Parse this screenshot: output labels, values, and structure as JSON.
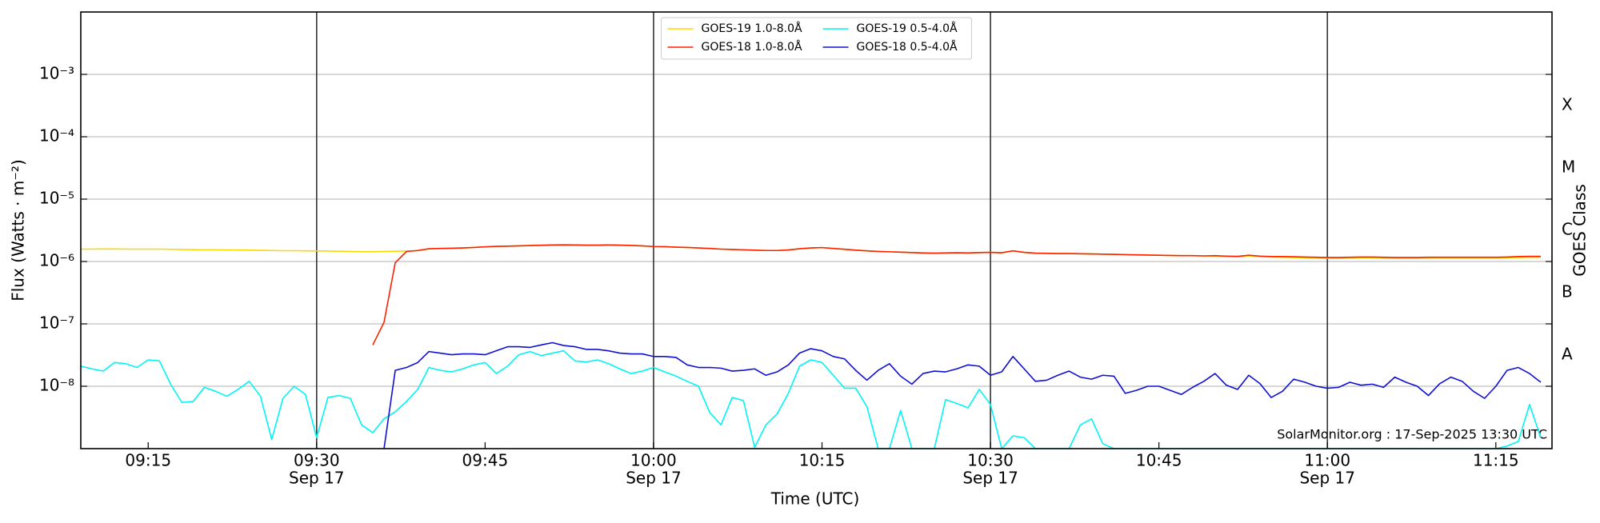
{
  "chart_data": {
    "type": "line",
    "xlabel": "Time (UTC)",
    "ylabel": "Flux (Watts · m⁻²)",
    "y2label": "GOES Class",
    "annotation": "SolarMonitor.org : 17-Sep-2025 13:30 UTC",
    "log_y": true,
    "grid": true,
    "legend": {
      "loc": "upper center",
      "ncol": 2
    },
    "xlim": [
      "09:09",
      "11:20"
    ],
    "ylim": [
      1e-09,
      0.01
    ],
    "xticks": [
      "09:15",
      "09:30",
      "09:45",
      "10:00",
      "10:15",
      "10:30",
      "10:45",
      "11:00",
      "11:15"
    ],
    "xtick_sublabels": [
      null,
      "Sep 17",
      null,
      "Sep 17",
      null,
      "Sep 17",
      null,
      "Sep 17",
      null
    ],
    "vlines": [
      "09:30",
      "10:00",
      "10:30",
      "11:00"
    ],
    "yticks": [
      {
        "value": 0.001,
        "label": "10⁻³"
      },
      {
        "value": 0.0001,
        "label": "10⁻⁴"
      },
      {
        "value": 1e-05,
        "label": "10⁻⁵"
      },
      {
        "value": 1e-06,
        "label": "10⁻⁶"
      },
      {
        "value": 1e-07,
        "label": "10⁻⁷"
      },
      {
        "value": 1e-08,
        "label": "10⁻⁸"
      }
    ],
    "class_labels": [
      {
        "value": 3.16e-08,
        "label": "A"
      },
      {
        "value": 3.16e-07,
        "label": "B"
      },
      {
        "value": 3.16e-06,
        "label": "C"
      },
      {
        "value": 3.16e-05,
        "label": "M"
      },
      {
        "value": 0.000316,
        "label": "X"
      }
    ],
    "x": [
      "09:09",
      "09:10",
      "09:11",
      "09:12",
      "09:13",
      "09:14",
      "09:15",
      "09:16",
      "09:17",
      "09:18",
      "09:19",
      "09:20",
      "09:21",
      "09:22",
      "09:23",
      "09:24",
      "09:25",
      "09:26",
      "09:27",
      "09:28",
      "09:29",
      "09:30",
      "09:31",
      "09:32",
      "09:33",
      "09:34",
      "09:35",
      "09:36",
      "09:37",
      "09:38",
      "09:39",
      "09:40",
      "09:41",
      "09:42",
      "09:43",
      "09:44",
      "09:45",
      "09:46",
      "09:47",
      "09:48",
      "09:49",
      "09:50",
      "09:51",
      "09:52",
      "09:53",
      "09:54",
      "09:55",
      "09:56",
      "09:57",
      "09:58",
      "09:59",
      "10:00",
      "10:01",
      "10:02",
      "10:03",
      "10:04",
      "10:05",
      "10:06",
      "10:07",
      "10:08",
      "10:09",
      "10:10",
      "10:11",
      "10:12",
      "10:13",
      "10:14",
      "10:15",
      "10:16",
      "10:17",
      "10:18",
      "10:19",
      "10:20",
      "10:21",
      "10:22",
      "10:23",
      "10:24",
      "10:25",
      "10:26",
      "10:27",
      "10:28",
      "10:29",
      "10:30",
      "10:31",
      "10:32",
      "10:33",
      "10:34",
      "10:35",
      "10:36",
      "10:37",
      "10:38",
      "10:39",
      "10:40",
      "10:41",
      "10:42",
      "10:43",
      "10:44",
      "10:45",
      "10:46",
      "10:47",
      "10:48",
      "10:49",
      "10:50",
      "10:51",
      "10:52",
      "10:53",
      "10:54",
      "10:55",
      "10:56",
      "10:57",
      "10:58",
      "10:59",
      "11:00",
      "11:01",
      "11:02",
      "11:03",
      "11:04",
      "11:05",
      "11:06",
      "11:07",
      "11:08",
      "11:09",
      "11:10",
      "11:11",
      "11:12",
      "11:13",
      "11:14",
      "11:15",
      "11:16",
      "11:17",
      "11:18",
      "11:19"
    ],
    "series": [
      {
        "name": "GOES-19 1.0-8.0Å",
        "color": "#ffd700",
        "values": [
          1.58e-06,
          1.58e-06,
          1.59e-06,
          1.59e-06,
          1.58e-06,
          1.58e-06,
          1.58e-06,
          1.58e-06,
          1.57e-06,
          1.56e-06,
          1.55e-06,
          1.54e-06,
          1.54e-06,
          1.53e-06,
          1.53e-06,
          1.52e-06,
          1.51e-06,
          1.5e-06,
          1.49e-06,
          1.49e-06,
          1.48e-06,
          1.48e-06,
          1.47e-06,
          1.46e-06,
          1.45e-06,
          1.44e-06,
          1.44e-06,
          1.45e-06,
          1.46e-06,
          1.47e-06,
          1.49e-06,
          1.6e-06,
          1.62e-06,
          1.63e-06,
          1.65e-06,
          1.68e-06,
          1.72e-06,
          1.75e-06,
          1.76e-06,
          1.78e-06,
          1.8e-06,
          1.82e-06,
          1.84e-06,
          1.85e-06,
          1.84e-06,
          1.83e-06,
          1.83e-06,
          1.84e-06,
          1.83e-06,
          1.81e-06,
          1.78e-06,
          1.74e-06,
          1.73e-06,
          1.7e-06,
          1.68e-06,
          1.65e-06,
          1.62e-06,
          1.58e-06,
          1.56e-06,
          1.54e-06,
          1.52e-06,
          1.5e-06,
          1.5e-06,
          1.53e-06,
          1.6e-06,
          1.65e-06,
          1.67e-06,
          1.62e-06,
          1.57e-06,
          1.52e-06,
          1.48e-06,
          1.45e-06,
          1.43e-06,
          1.41e-06,
          1.39e-06,
          1.37e-06,
          1.36e-06,
          1.37e-06,
          1.38e-06,
          1.37e-06,
          1.39e-06,
          1.4e-06,
          1.38e-06,
          1.48e-06,
          1.4e-06,
          1.36e-06,
          1.35e-06,
          1.34e-06,
          1.34e-06,
          1.33e-06,
          1.32e-06,
          1.31e-06,
          1.3e-06,
          1.29e-06,
          1.28e-06,
          1.27e-06,
          1.26e-06,
          1.25e-06,
          1.24e-06,
          1.24e-06,
          1.23e-06,
          1.22e-06,
          1.2e-06,
          1.19e-06,
          1.23e-06,
          1.2e-06,
          1.18e-06,
          1.17e-06,
          1.16e-06,
          1.15e-06,
          1.14e-06,
          1.13e-06,
          1.13e-06,
          1.14e-06,
          1.15e-06,
          1.15e-06,
          1.14e-06,
          1.13e-06,
          1.13e-06,
          1.13e-06,
          1.14e-06,
          1.14e-06,
          1.14e-06,
          1.14e-06,
          1.14e-06,
          1.14e-06,
          1.14e-06,
          1.15e-06,
          1.16e-06,
          1.17e-06,
          1.17e-06
        ]
      },
      {
        "name": "GOES-18 1.0-8.0Å",
        "color": "#ff2000",
        "values": [
          null,
          null,
          null,
          null,
          null,
          null,
          null,
          null,
          null,
          null,
          null,
          null,
          null,
          null,
          null,
          null,
          null,
          null,
          null,
          null,
          null,
          null,
          null,
          null,
          null,
          null,
          4.6e-08,
          1.06e-07,
          9.6e-07,
          1.45e-06,
          1.5e-06,
          1.6e-06,
          1.62e-06,
          1.63e-06,
          1.65e-06,
          1.68e-06,
          1.72e-06,
          1.75e-06,
          1.76e-06,
          1.78e-06,
          1.8e-06,
          1.82e-06,
          1.84e-06,
          1.85e-06,
          1.84e-06,
          1.83e-06,
          1.83e-06,
          1.84e-06,
          1.83e-06,
          1.81e-06,
          1.78e-06,
          1.74e-06,
          1.73e-06,
          1.7e-06,
          1.68e-06,
          1.65e-06,
          1.62e-06,
          1.58e-06,
          1.56e-06,
          1.54e-06,
          1.52e-06,
          1.5e-06,
          1.5e-06,
          1.53e-06,
          1.6e-06,
          1.65e-06,
          1.67e-06,
          1.62e-06,
          1.57e-06,
          1.52e-06,
          1.48e-06,
          1.45e-06,
          1.43e-06,
          1.41e-06,
          1.39e-06,
          1.37e-06,
          1.36e-06,
          1.37e-06,
          1.38e-06,
          1.37e-06,
          1.39e-06,
          1.4e-06,
          1.38e-06,
          1.48e-06,
          1.4e-06,
          1.36e-06,
          1.35e-06,
          1.34e-06,
          1.34e-06,
          1.33e-06,
          1.32e-06,
          1.31e-06,
          1.3e-06,
          1.29e-06,
          1.28e-06,
          1.27e-06,
          1.26e-06,
          1.25e-06,
          1.24e-06,
          1.24e-06,
          1.23e-06,
          1.24e-06,
          1.22e-06,
          1.21e-06,
          1.26e-06,
          1.22e-06,
          1.2e-06,
          1.2e-06,
          1.19e-06,
          1.18e-06,
          1.17e-06,
          1.16e-06,
          1.16e-06,
          1.17e-06,
          1.18e-06,
          1.18e-06,
          1.17e-06,
          1.16e-06,
          1.16e-06,
          1.16e-06,
          1.17e-06,
          1.17e-06,
          1.17e-06,
          1.17e-06,
          1.17e-06,
          1.17e-06,
          1.17e-06,
          1.18e-06,
          1.2e-06,
          1.21e-06,
          1.21e-06
        ]
      },
      {
        "name": "GOES-19 0.5-4.0Å",
        "color": "#00f5f5",
        "values": [
          2.1e-08,
          1.9e-08,
          1.75e-08,
          2.4e-08,
          2.3e-08,
          2e-08,
          2.65e-08,
          2.55e-08,
          1.08e-08,
          5.5e-09,
          5.7e-09,
          9.6e-09,
          8.3e-09,
          6.9e-09,
          8.9e-09,
          1.2e-08,
          6.9e-09,
          1.4e-09,
          6.4e-09,
          1e-08,
          7.4e-09,
          1.5e-09,
          6.6e-09,
          7.1e-09,
          6.4e-09,
          2.4e-09,
          1.8e-09,
          3e-09,
          3.9e-09,
          5.7e-09,
          8.9e-09,
          2e-08,
          1.8e-08,
          1.7e-08,
          1.9e-08,
          2.2e-08,
          2.4e-08,
          1.6e-08,
          2.1e-08,
          3.2e-08,
          3.6e-08,
          3.1e-08,
          3.4e-08,
          3.7e-08,
          2.55e-08,
          2.45e-08,
          2.65e-08,
          2.3e-08,
          1.9e-08,
          1.6e-08,
          1.75e-08,
          2e-08,
          1.7e-08,
          1.45e-08,
          1.2e-08,
          1e-08,
          3.8e-09,
          2.4e-09,
          6.6e-09,
          5.9e-09,
          1.05e-09,
          2.4e-09,
          3.6e-09,
          7.7e-09,
          2.1e-08,
          2.65e-08,
          2.4e-08,
          1.5e-08,
          9.3e-09,
          9.3e-09,
          4.7e-09,
          1e-09,
          1e-09,
          4.1e-09,
          1e-09,
          1e-09,
          1e-09,
          6.1e-09,
          5.3e-09,
          4.5e-09,
          8.9e-09,
          5.1e-09,
          1e-09,
          1.6e-09,
          1.5e-09,
          1e-09,
          1e-09,
          1e-09,
          1e-09,
          2.4e-09,
          3e-09,
          1.2e-09,
          1e-09,
          1e-09,
          1e-09,
          1e-09,
          1e-09,
          1e-09,
          1e-09,
          1e-09,
          1e-09,
          1e-09,
          1e-09,
          1e-09,
          1e-09,
          1e-09,
          1e-09,
          1e-09,
          1e-09,
          1e-09,
          1e-09,
          1e-09,
          1e-09,
          1e-09,
          1e-09,
          1e-09,
          1e-09,
          1e-09,
          1e-09,
          1e-09,
          1e-09,
          1e-09,
          1e-09,
          1e-09,
          1e-09,
          1e-09,
          1e-09,
          1.1e-09,
          1.3e-09,
          5.1e-09,
          1.5e-09
        ]
      },
      {
        "name": "GOES-18 0.5-4.0Å",
        "color": "#1010d0",
        "values": [
          null,
          null,
          null,
          null,
          null,
          null,
          null,
          null,
          null,
          null,
          null,
          null,
          null,
          null,
          null,
          null,
          null,
          null,
          null,
          null,
          null,
          null,
          null,
          null,
          null,
          null,
          null,
          1e-09,
          1.8e-08,
          2e-08,
          2.4e-08,
          3.6e-08,
          3.4e-08,
          3.2e-08,
          3.3e-08,
          3.3e-08,
          3.2e-08,
          3.7e-08,
          4.3e-08,
          4.3e-08,
          4.2e-08,
          4.6e-08,
          5e-08,
          4.5e-08,
          4.3e-08,
          3.9e-08,
          3.9e-08,
          3.7e-08,
          3.4e-08,
          3.3e-08,
          3.3e-08,
          3e-08,
          3e-08,
          2.9e-08,
          2.2e-08,
          2e-08,
          2e-08,
          1.95e-08,
          1.75e-08,
          1.8e-08,
          1.9e-08,
          1.5e-08,
          1.7e-08,
          2.2e-08,
          3.4e-08,
          4e-08,
          3.7e-08,
          3e-08,
          2.75e-08,
          1.8e-08,
          1.25e-08,
          1.8e-08,
          2.3e-08,
          1.45e-08,
          1.08e-08,
          1.6e-08,
          1.75e-08,
          1.7e-08,
          1.9e-08,
          2.2e-08,
          2.1e-08,
          1.5e-08,
          1.7e-08,
          3e-08,
          1.9e-08,
          1.2e-08,
          1.25e-08,
          1.5e-08,
          1.75e-08,
          1.4e-08,
          1.3e-08,
          1.5e-08,
          1.45e-08,
          7.7e-09,
          8.6e-09,
          1e-08,
          1e-08,
          8.6e-09,
          7.4e-09,
          9.6e-09,
          1.2e-08,
          1.6e-08,
          1.04e-08,
          8.9e-09,
          1.5e-08,
          1.1e-08,
          6.6e-09,
          8.3e-09,
          1.3e-08,
          1.16e-08,
          1e-08,
          9.3e-09,
          9.6e-09,
          1.16e-08,
          1.04e-08,
          1.08e-08,
          9.6e-09,
          1.4e-08,
          1.16e-08,
          1e-08,
          7.1e-09,
          1.1e-08,
          1.4e-08,
          1.2e-08,
          8.3e-09,
          6.4e-09,
          1e-08,
          1.8e-08,
          2e-08,
          1.6e-08,
          1.16e-08
        ]
      }
    ]
  }
}
